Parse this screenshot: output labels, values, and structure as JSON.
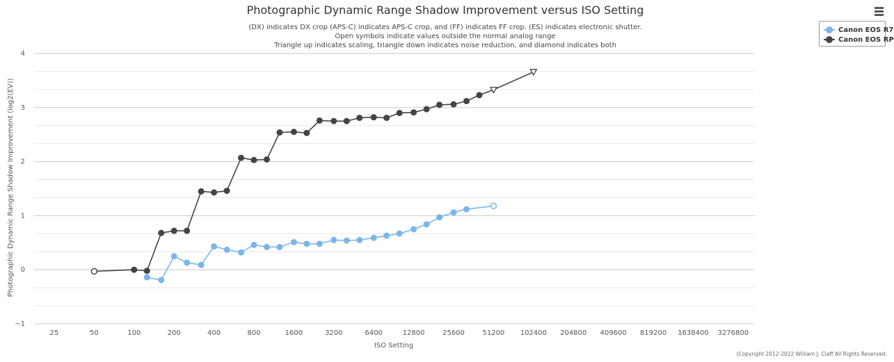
{
  "menu_icon": "hamburger-icon",
  "colors": {
    "r7": "#7cb5ec",
    "rp": "#434348",
    "grid": "#e6e6e6"
  },
  "chart_data": {
    "type": "line",
    "title": "Photographic Dynamic Range Shadow Improvement versus ISO Setting",
    "subtitle": [
      "(DX) indicates DX crop (APS-C) indicates APS-C crop, and (FF) indicates FF crop. (ES) indicates electronic shutter.",
      "Open symbols indicate values outside the normal analog range",
      "Triangle up indicates scaling, triangle down indicates noise reduction, and diamond indicates both"
    ],
    "xlabel": "ISO Setting",
    "ylabel": "Photographic Dynamic Range Shadow Improvement (log2(EV))",
    "x_scale": "log2",
    "x_ticks": [
      25,
      50,
      100,
      200,
      400,
      800,
      1600,
      3200,
      6400,
      12800,
      25600,
      51200,
      102400,
      204800,
      409600,
      819200,
      1638400,
      3276800
    ],
    "ylim": [
      -1,
      4
    ],
    "y_ticks": [
      -1,
      0,
      1,
      2,
      3,
      4
    ],
    "grid": true,
    "legend_position": "top-right",
    "series": [
      {
        "name": "Canon EOS R7",
        "color": "#7cb5ec",
        "points": [
          {
            "iso": 125,
            "y": -0.14
          },
          {
            "iso": 160,
            "y": -0.19
          },
          {
            "iso": 200,
            "y": 0.25
          },
          {
            "iso": 250,
            "y": 0.13
          },
          {
            "iso": 320,
            "y": 0.09
          },
          {
            "iso": 400,
            "y": 0.43
          },
          {
            "iso": 500,
            "y": 0.37
          },
          {
            "iso": 640,
            "y": 0.32
          },
          {
            "iso": 800,
            "y": 0.46
          },
          {
            "iso": 1000,
            "y": 0.42
          },
          {
            "iso": 1250,
            "y": 0.42
          },
          {
            "iso": 1600,
            "y": 0.51
          },
          {
            "iso": 2000,
            "y": 0.48
          },
          {
            "iso": 2500,
            "y": 0.48
          },
          {
            "iso": 3200,
            "y": 0.55
          },
          {
            "iso": 4000,
            "y": 0.54
          },
          {
            "iso": 5000,
            "y": 0.55
          },
          {
            "iso": 6400,
            "y": 0.59
          },
          {
            "iso": 8000,
            "y": 0.63
          },
          {
            "iso": 10000,
            "y": 0.67
          },
          {
            "iso": 12800,
            "y": 0.75
          },
          {
            "iso": 16000,
            "y": 0.84
          },
          {
            "iso": 20000,
            "y": 0.97
          },
          {
            "iso": 25600,
            "y": 1.06
          },
          {
            "iso": 32000,
            "y": 1.12
          },
          {
            "iso": 51200,
            "y": 1.18,
            "symbol": "open-circle"
          }
        ]
      },
      {
        "name": "Canon EOS RP",
        "color": "#434348",
        "points": [
          {
            "iso": 50,
            "y": -0.03,
            "symbol": "open-circle"
          },
          {
            "iso": 100,
            "y": 0.0
          },
          {
            "iso": 125,
            "y": -0.02
          },
          {
            "iso": 160,
            "y": 0.68
          },
          {
            "iso": 200,
            "y": 0.72
          },
          {
            "iso": 250,
            "y": 0.72
          },
          {
            "iso": 320,
            "y": 1.45
          },
          {
            "iso": 400,
            "y": 1.43
          },
          {
            "iso": 500,
            "y": 1.46
          },
          {
            "iso": 640,
            "y": 2.07
          },
          {
            "iso": 800,
            "y": 2.03
          },
          {
            "iso": 1000,
            "y": 2.04
          },
          {
            "iso": 1250,
            "y": 2.54
          },
          {
            "iso": 1600,
            "y": 2.55
          },
          {
            "iso": 2000,
            "y": 2.53
          },
          {
            "iso": 2500,
            "y": 2.76
          },
          {
            "iso": 3200,
            "y": 2.75
          },
          {
            "iso": 4000,
            "y": 2.75
          },
          {
            "iso": 5000,
            "y": 2.81
          },
          {
            "iso": 6400,
            "y": 2.82
          },
          {
            "iso": 8000,
            "y": 2.81
          },
          {
            "iso": 10000,
            "y": 2.9
          },
          {
            "iso": 12800,
            "y": 2.91
          },
          {
            "iso": 16000,
            "y": 2.97
          },
          {
            "iso": 20000,
            "y": 3.05
          },
          {
            "iso": 25600,
            "y": 3.06
          },
          {
            "iso": 32000,
            "y": 3.12
          },
          {
            "iso": 40000,
            "y": 3.23
          },
          {
            "iso": 51200,
            "y": 3.33,
            "symbol": "open-triangle-down"
          },
          {
            "iso": 102400,
            "y": 3.66,
            "symbol": "open-triangle-down"
          }
        ]
      }
    ],
    "credits": "(Copyright 2012-2022 William J. Claff All Rights Reserved."
  }
}
